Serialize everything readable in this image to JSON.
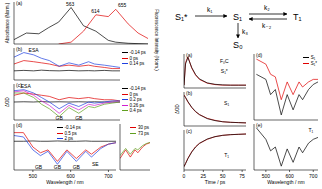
{
  "chart_data": [
    {
      "type": "line",
      "title": "(a)",
      "y_label": "Absorbance (Norm.)",
      "y2_label": "Fluorescence Intensity (Norm.)",
      "tick_labels": false,
      "x": [
        450,
        475,
        500,
        520,
        540,
        565,
        590,
        615,
        640,
        655,
        680,
        700,
        720
      ],
      "xlim": [
        450,
        720
      ],
      "xticks": [
        500,
        600,
        700
      ],
      "ylim": [
        0,
        1.15
      ],
      "series": [
        {
          "color": "#000000",
          "values": [
            0.12,
            0.3,
            0.28,
            0.45,
            0.6,
            1.0,
            0.5,
            0.35,
            0.1,
            0.05,
            0.02,
            0.01,
            0
          ]
        },
        {
          "color": "#e00000",
          "values": [
            null,
            null,
            null,
            null,
            0,
            0.05,
            0.35,
            0.8,
            0.75,
            0.95,
            0.55,
            0.3,
            0.15
          ]
        }
      ],
      "annotations": [
        {
          "text": "563",
          "x": 563,
          "y": 1.08
        },
        {
          "text": "614",
          "x": 614,
          "y": 0.9
        },
        {
          "text": "655",
          "x": 668,
          "y": 1.05
        }
      ]
    },
    {
      "type": "line",
      "title": "(b)",
      "tick_labels": false,
      "legend": "right",
      "x": [
        450,
        475,
        500,
        520,
        540,
        565,
        590,
        615,
        640,
        655,
        680,
        700,
        720
      ],
      "xlim": [
        450,
        720
      ],
      "xticks": [
        500,
        600,
        700
      ],
      "ylim": [
        -0.4,
        1.0
      ],
      "series": [
        {
          "name": "-0.14 ps",
          "color": "#000000",
          "values": [
            0,
            0.02,
            0,
            0.03,
            0.01,
            0,
            0.02,
            0,
            0.01,
            0,
            0.02,
            0,
            0
          ]
        },
        {
          "name": "0 ps",
          "color": "#e00000",
          "values": [
            0.3,
            0.45,
            0.4,
            0.35,
            0.3,
            0.2,
            0.25,
            0.2,
            0.25,
            0.2,
            0.15,
            0.1,
            0.1
          ]
        },
        {
          "name": "0.14 ps",
          "color": "#2040e0",
          "values": [
            0.6,
            0.8,
            0.7,
            0.55,
            0.45,
            0.2,
            0.35,
            0.25,
            0.4,
            0.3,
            0.25,
            0.2,
            0.15
          ]
        }
      ],
      "annotations": [
        {
          "text": "ESA",
          "x": 500,
          "y": 0.9
        }
      ]
    },
    {
      "type": "line",
      "title": "(c)",
      "y_label": "ΔOD",
      "tick_labels": false,
      "legend": "right",
      "x": [
        450,
        475,
        500,
        520,
        540,
        565,
        590,
        615,
        640,
        655,
        680,
        700,
        720
      ],
      "xlim": [
        450,
        720
      ],
      "xticks": [
        500,
        600,
        700
      ],
      "ylim": [
        -0.8,
        0.8
      ],
      "series": [
        {
          "name": "-0.14 ps",
          "color": "#000000",
          "values": [
            0,
            0.01,
            0,
            0.02,
            0,
            0.01,
            0,
            0.01,
            0,
            0.01,
            0,
            0,
            0
          ]
        },
        {
          "name": "0 ps",
          "color": "#e00000",
          "values": [
            0.3,
            0.4,
            0.35,
            0.3,
            0.25,
            0.1,
            0.2,
            0.15,
            0.2,
            0.15,
            0.1,
            0.1,
            0.05
          ]
        },
        {
          "name": "0.2 ps",
          "color": "#2040e0",
          "values": [
            0.5,
            0.55,
            0.4,
            0.2,
            0,
            -0.3,
            -0.05,
            -0.2,
            0,
            -0.05,
            0,
            0.05,
            0.05
          ]
        },
        {
          "name": "0.26 ps",
          "color": "#d020d0",
          "values": [
            0.45,
            0.5,
            0.3,
            0.05,
            -0.15,
            -0.5,
            -0.15,
            -0.35,
            -0.1,
            -0.15,
            -0.05,
            0,
            0
          ]
        },
        {
          "name": "0.4 ps",
          "color": "#60a020",
          "values": [
            0.4,
            0.4,
            0.2,
            -0.1,
            -0.3,
            -0.65,
            -0.25,
            -0.5,
            -0.2,
            -0.25,
            -0.1,
            -0.05,
            0
          ]
        }
      ],
      "annotations": [
        {
          "text": "ESA",
          "x": 480,
          "y": 0.68
        },
        {
          "text": "GB",
          "x": 565,
          "y": -0.72
        },
        {
          "text": "GB",
          "x": 615,
          "y": -0.72
        }
      ]
    },
    {
      "type": "line",
      "title": "(d)",
      "x_label": "Wavelength / nm",
      "tick_labels": "x",
      "legend": "upper center",
      "x": [
        450,
        475,
        500,
        520,
        540,
        565,
        590,
        615,
        640,
        655,
        680,
        700,
        720
      ],
      "xlim": [
        450,
        720
      ],
      "xticks": [
        500,
        600,
        700
      ],
      "ylim": [
        -1.0,
        0.6
      ],
      "series": [
        {
          "name": "-0.14 ps",
          "color": "#000000",
          "values": [
            0,
            0,
            0.01,
            0,
            0,
            0.01,
            0,
            0,
            0.01,
            0,
            0,
            0,
            0
          ]
        },
        {
          "name": "0.5 ps",
          "color": "#e00000",
          "values": [
            0.3,
            0.3,
            -0.2,
            -0.4,
            -0.3,
            -0.7,
            -0.3,
            -0.6,
            -0.3,
            -0.45,
            -0.2,
            -0.1,
            -0.05
          ]
        },
        {
          "name": "2 ps",
          "color": "#2040e0",
          "values": [
            0.2,
            0.15,
            -0.3,
            -0.5,
            -0.35,
            -0.8,
            -0.35,
            -0.7,
            -0.35,
            -0.55,
            -0.25,
            -0.1,
            -0.05
          ]
        }
      ],
      "annotations": [
        {
          "text": "GB",
          "x": 515,
          "y": -0.92
        },
        {
          "text": "GB",
          "x": 565,
          "y": -0.92
        },
        {
          "text": "GB",
          "x": 615,
          "y": -0.92
        },
        {
          "text": "SE",
          "x": 665,
          "y": -0.8
        }
      ]
    },
    {
      "type": "line",
      "tick_labels": false,
      "legend": "upper right",
      "x": [
        560,
        590,
        615,
        640,
        655,
        680,
        700,
        720
      ],
      "xlim": [
        560,
        720
      ],
      "xticks": [
        600,
        700
      ],
      "ylim": [
        -1.0,
        0.6
      ],
      "series": [
        {
          "name": "30 ps",
          "color": "#e00000",
          "values": [
            -0.6,
            -0.3,
            -0.55,
            -0.3,
            -0.4,
            -0.2,
            -0.1,
            -0.05
          ]
        },
        {
          "name": "73 ps",
          "color": "#60a020",
          "values": [
            -0.5,
            -0.25,
            -0.45,
            -0.25,
            -0.3,
            -0.15,
            -0.08,
            -0.04
          ]
        }
      ]
    },
    {
      "type": "line",
      "title": "(a)",
      "tick_labels": false,
      "x": [
        0,
        2,
        5,
        10,
        15,
        20,
        30,
        40,
        50,
        60,
        70,
        80
      ],
      "xlim": [
        0,
        80
      ],
      "xticks": [
        0,
        25,
        50,
        75
      ],
      "ylim": [
        -0.1,
        1.1
      ],
      "series": [
        {
          "color": "#e00000",
          "values": [
            0,
            0.8,
            1.0,
            0.6,
            0.35,
            0.2,
            0.07,
            0.02,
            0,
            0,
            0,
            0
          ]
        },
        {
          "color": "#000000",
          "values": [
            0,
            0.75,
            0.98,
            0.62,
            0.37,
            0.22,
            0.08,
            0.03,
            0.01,
            0,
            0,
            0
          ]
        }
      ],
      "annotations": [
        {
          "text": "F₀C",
          "x": 52,
          "y": 0.85
        },
        {
          "text": "S₁*",
          "x": 52,
          "y": 0.5
        }
      ]
    },
    {
      "type": "line",
      "title": "(b)",
      "y_label": "ΔOD",
      "tick_labels": false,
      "x": [
        0,
        2,
        5,
        10,
        15,
        20,
        30,
        40,
        50,
        60,
        70,
        80
      ],
      "xlim": [
        0,
        80
      ],
      "xticks": [
        0,
        25,
        50,
        75
      ],
      "ylim": [
        -0.1,
        1.1
      ],
      "series": [
        {
          "color": "#e00000",
          "values": [
            1.0,
            0.9,
            0.75,
            0.55,
            0.4,
            0.3,
            0.17,
            0.1,
            0.05,
            0.03,
            0.02,
            0.01
          ]
        },
        {
          "color": "#000000",
          "values": [
            0.98,
            0.91,
            0.76,
            0.56,
            0.41,
            0.3,
            0.16,
            0.09,
            0.05,
            0.03,
            0.02,
            0.01
          ]
        }
      ],
      "annotations": [
        {
          "text": "S₁",
          "x": 55,
          "y": 0.7
        }
      ]
    },
    {
      "type": "line",
      "title": "(c)",
      "x_label": "Time / ps",
      "tick_labels": "x",
      "x": [
        0,
        2,
        5,
        10,
        15,
        20,
        30,
        40,
        50,
        60,
        70,
        80
      ],
      "xlim": [
        0,
        80
      ],
      "xticks": [
        0,
        25,
        50,
        75
      ],
      "ylim": [
        -0.1,
        1.1
      ],
      "series": [
        {
          "color": "#e00000",
          "values": [
            0,
            0.1,
            0.25,
            0.45,
            0.6,
            0.7,
            0.82,
            0.9,
            0.94,
            0.96,
            0.97,
            0.98
          ]
        },
        {
          "color": "#000000",
          "values": [
            0,
            0.09,
            0.24,
            0.44,
            0.59,
            0.7,
            0.83,
            0.9,
            0.94,
            0.96,
            0.97,
            0.98
          ]
        }
      ],
      "annotations": [
        {
          "text": "T₁",
          "x": 55,
          "y": 0.35
        }
      ]
    },
    {
      "type": "line",
      "title": "(d)",
      "tick_labels": false,
      "legend": "upper right",
      "x": [
        460,
        500,
        520,
        540,
        565,
        590,
        615,
        640,
        655,
        680,
        700,
        720
      ],
      "xlim": [
        450,
        720
      ],
      "xticks": [
        500,
        600,
        700
      ],
      "ylim": [
        -0.8,
        0.5
      ],
      "series": [
        {
          "name": "S₁",
          "color": "#000000",
          "values": [
            0.1,
            0,
            -0.3,
            -0.2,
            -0.7,
            -0.3,
            -0.6,
            -0.3,
            -0.4,
            -0.2,
            -0.1,
            -0.05
          ]
        },
        {
          "name": "S₁*",
          "color": "#e00000",
          "values": [
            0.4,
            0.3,
            0.1,
            0.05,
            -0.4,
            -0.05,
            -0.3,
            -0.05,
            -0.15,
            -0.05,
            0,
            0
          ]
        }
      ]
    },
    {
      "type": "line",
      "title": "(e)",
      "x_label": "Wavelength / nm",
      "tick_labels": "x",
      "x": [
        460,
        500,
        520,
        540,
        565,
        590,
        615,
        640,
        655,
        680,
        700,
        720
      ],
      "xlim": [
        450,
        720
      ],
      "xticks": [
        500,
        600,
        700
      ],
      "ylim": [
        -0.9,
        0.3
      ],
      "series": [
        {
          "color": "#000000",
          "values": [
            0.2,
            -0.1,
            -0.4,
            -0.3,
            -0.8,
            -0.35,
            -0.7,
            -0.3,
            -0.45,
            -0.2,
            -0.1,
            -0.05
          ]
        }
      ],
      "annotations": [
        {
          "text": "T₁",
          "x": 690,
          "y": 0.15
        }
      ]
    }
  ],
  "diagram": {
    "states": [
      "S₁*",
      "S₁",
      "T₁",
      "S₀"
    ],
    "rates": [
      "k₁",
      "k₂",
      "k₋₂",
      "k₃"
    ]
  }
}
